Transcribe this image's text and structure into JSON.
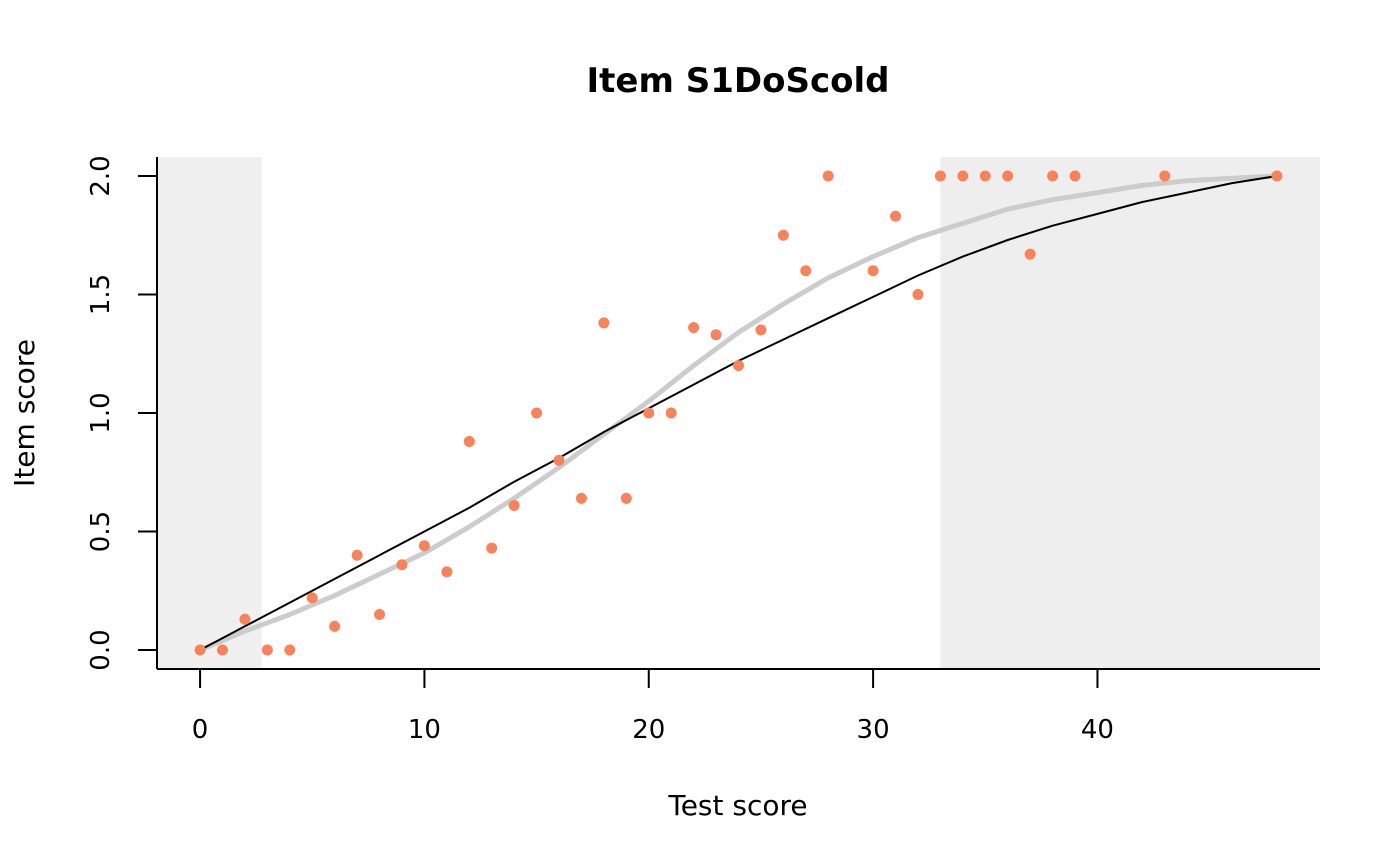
{
  "chart_data": {
    "type": "scatter",
    "title": "Item S1DoScold",
    "xlabel": "Test score",
    "ylabel": "Item score",
    "xlim": [
      -1.92,
      49.92
    ],
    "ylim": [
      -0.08,
      2.08
    ],
    "x_ticks": [
      0,
      10,
      20,
      30,
      40
    ],
    "x_tick_labels": [
      "0",
      "10",
      "20",
      "30",
      "40"
    ],
    "y_ticks": [
      0,
      0.5,
      1,
      1.5,
      2
    ],
    "y_tick_labels": [
      "0.0",
      "0.5",
      "1.0",
      "1.5",
      "2.0"
    ],
    "grid": false,
    "shaded_regions": [
      {
        "x0": -1.92,
        "x1": 2.75,
        "color": "#f0f0f0"
      },
      {
        "x0": 33.0,
        "x1": 49.92,
        "color": "#eeeeee"
      }
    ],
    "points": {
      "color": "#f8825a",
      "x": [
        0,
        1,
        2,
        3,
        4,
        5,
        6,
        7,
        8,
        9,
        10,
        11,
        12,
        13,
        14,
        15,
        16,
        17,
        18,
        19,
        20,
        21,
        22,
        23,
        24,
        25,
        26,
        27,
        28,
        30,
        31,
        32,
        33,
        34,
        35,
        36,
        37,
        38,
        39,
        43,
        48
      ],
      "y": [
        0,
        0,
        0.13,
        0,
        0,
        0.22,
        0.1,
        0.4,
        0.15,
        0.36,
        0.44,
        0.33,
        0.88,
        0.43,
        0.61,
        1.0,
        0.8,
        0.64,
        1.38,
        0.64,
        1.0,
        1.0,
        1.36,
        1.33,
        1.2,
        1.35,
        1.75,
        1.6,
        2.0,
        1.6,
        1.83,
        1.5,
        2.0,
        2.0,
        2.0,
        2.0,
        1.67,
        2.0,
        2.0,
        2.0,
        2.0
      ]
    },
    "curves": [
      {
        "color": "#cccccc",
        "width": 5,
        "x": [
          0,
          2,
          4,
          6,
          8,
          10,
          12,
          14,
          16,
          18,
          20,
          22,
          24,
          26,
          28,
          30,
          32,
          34,
          36,
          38,
          40,
          42,
          44,
          46,
          48
        ],
        "y": [
          0.0,
          0.08,
          0.15,
          0.23,
          0.32,
          0.41,
          0.52,
          0.64,
          0.77,
          0.91,
          1.05,
          1.2,
          1.34,
          1.46,
          1.57,
          1.66,
          1.74,
          1.8,
          1.86,
          1.9,
          1.93,
          1.96,
          1.98,
          1.99,
          2.0
        ]
      },
      {
        "color": "#000000",
        "width": 2,
        "x": [
          0,
          2,
          4,
          6,
          8,
          10,
          12,
          14,
          16,
          18,
          20,
          22,
          24,
          26,
          28,
          30,
          32,
          34,
          36,
          38,
          40,
          42,
          44,
          46,
          48
        ],
        "y": [
          0.0,
          0.1,
          0.2,
          0.3,
          0.4,
          0.5,
          0.6,
          0.71,
          0.81,
          0.92,
          1.02,
          1.12,
          1.22,
          1.31,
          1.4,
          1.49,
          1.58,
          1.66,
          1.73,
          1.79,
          1.84,
          1.89,
          1.93,
          1.97,
          2.0
        ]
      }
    ]
  }
}
